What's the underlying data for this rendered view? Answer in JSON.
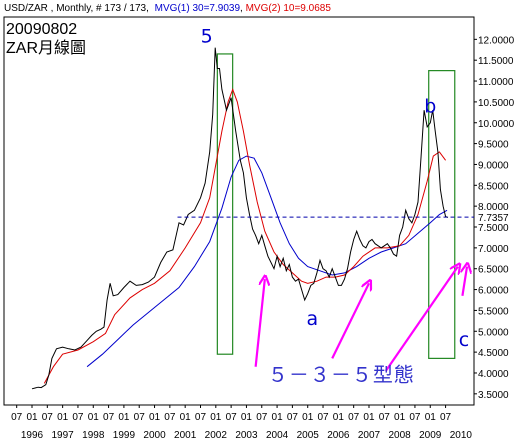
{
  "chart_data": {
    "type": "line",
    "header": {
      "instrument": "USD/ZAR , Monthly, # 173 / 173,",
      "ma1_label": "MVG(1) 30=7.9039",
      "ma2_label": "MVG(2) 10=9.0685"
    },
    "title_lines": [
      "20090802",
      "ZAR月線圖"
    ],
    "y_ticks": [
      "12.0000",
      "11.5000",
      "11.0000",
      "10.5000",
      "10.0000",
      "9.5000",
      "9.0000",
      "8.5000",
      "8.0000",
      "7.5000",
      "7.0000",
      "6.5000",
      "6.0000",
      "5.5000",
      "5.0000",
      "4.5000",
      "4.0000",
      "3.5000"
    ],
    "y_tick_values": [
      12.0,
      11.5,
      11.0,
      10.5,
      10.0,
      9.5,
      9.0,
      8.5,
      8.0,
      7.5,
      7.0,
      6.5,
      6.0,
      5.5,
      5.0,
      4.5,
      4.0,
      3.5
    ],
    "ylim": [
      3.4,
      12.2
    ],
    "xlim": [
      1996.0,
      2010.33
    ],
    "x_month_labels": [
      "07",
      "01",
      "07",
      "01",
      "07",
      "01",
      "07",
      "01",
      "07",
      "01",
      "07",
      "01",
      "07",
      "01",
      "07",
      "01",
      "07",
      "01",
      "07",
      "01",
      "07",
      "01",
      "07",
      "01",
      "07",
      "01",
      "07",
      "01",
      "07"
    ],
    "x_month_positions": [
      1995.5,
      1996.0,
      1996.5,
      1997.0,
      1997.5,
      1998.0,
      1998.5,
      1999.0,
      1999.5,
      2000.0,
      2000.5,
      2001.0,
      2001.5,
      2002.0,
      2002.5,
      2003.0,
      2003.5,
      2004.0,
      2004.5,
      2005.0,
      2005.5,
      2006.0,
      2006.5,
      2007.0,
      2007.5,
      2008.0,
      2008.5,
      2009.0,
      2009.5
    ],
    "x_year_labels": [
      "1996",
      "1997",
      "1998",
      "1999",
      "2000",
      "2001",
      "2002",
      "2003",
      "2004",
      "2005",
      "2006",
      "2007",
      "2008",
      "2009",
      "2010"
    ],
    "x_year_positions": [
      1996.0,
      1997.0,
      1998.0,
      1999.0,
      2000.0,
      2001.0,
      2002.0,
      2003.0,
      2004.0,
      2005.0,
      2006.0,
      2007.0,
      2008.0,
      2009.0,
      2010.0
    ],
    "current_value_label": "7.7357",
    "current_value": 7.7357,
    "series": [
      {
        "color": "#000000",
        "points": [
          [
            1996.0,
            3.62
          ],
          [
            1996.1,
            3.64
          ],
          [
            1996.2,
            3.66
          ],
          [
            1996.3,
            3.65
          ],
          [
            1996.45,
            3.72
          ],
          [
            1996.55,
            3.95
          ],
          [
            1996.65,
            4.35
          ],
          [
            1996.8,
            4.58
          ],
          [
            1997.0,
            4.62
          ],
          [
            1997.2,
            4.58
          ],
          [
            1997.4,
            4.55
          ],
          [
            1997.6,
            4.62
          ],
          [
            1997.8,
            4.78
          ],
          [
            1997.95,
            4.9
          ],
          [
            1998.1,
            5.0
          ],
          [
            1998.25,
            5.05
          ],
          [
            1998.35,
            5.1
          ],
          [
            1998.45,
            5.75
          ],
          [
            1998.55,
            6.15
          ],
          [
            1998.65,
            5.85
          ],
          [
            1998.8,
            5.88
          ],
          [
            1999.0,
            6.05
          ],
          [
            1999.2,
            6.2
          ],
          [
            1999.4,
            6.1
          ],
          [
            1999.6,
            6.12
          ],
          [
            1999.8,
            6.18
          ],
          [
            2000.0,
            6.3
          ],
          [
            2000.2,
            6.65
          ],
          [
            2000.4,
            6.9
          ],
          [
            2000.6,
            6.95
          ],
          [
            2000.8,
            7.6
          ],
          [
            2000.95,
            7.55
          ],
          [
            2001.1,
            7.8
          ],
          [
            2001.3,
            7.9
          ],
          [
            2001.5,
            8.2
          ],
          [
            2001.65,
            8.55
          ],
          [
            2001.8,
            9.3
          ],
          [
            2001.9,
            10.2
          ],
          [
            2001.98,
            11.8
          ],
          [
            2002.05,
            11.3
          ],
          [
            2002.12,
            11.3
          ],
          [
            2002.2,
            10.8
          ],
          [
            2002.35,
            10.3
          ],
          [
            2002.5,
            10.6
          ],
          [
            2002.65,
            9.8
          ],
          [
            2002.8,
            9.1
          ],
          [
            2002.9,
            8.8
          ],
          [
            2003.0,
            8.2
          ],
          [
            2003.1,
            7.8
          ],
          [
            2003.2,
            7.45
          ],
          [
            2003.3,
            7.3
          ],
          [
            2003.4,
            7.1
          ],
          [
            2003.5,
            7.3
          ],
          [
            2003.6,
            7.05
          ],
          [
            2003.7,
            6.8
          ],
          [
            2003.8,
            6.65
          ],
          [
            2003.9,
            6.5
          ],
          [
            2004.0,
            6.8
          ],
          [
            2004.1,
            6.55
          ],
          [
            2004.2,
            6.75
          ],
          [
            2004.3,
            6.45
          ],
          [
            2004.4,
            6.6
          ],
          [
            2004.5,
            6.3
          ],
          [
            2004.6,
            6.2
          ],
          [
            2004.7,
            6.25
          ],
          [
            2004.8,
            6.0
          ],
          [
            2004.9,
            5.75
          ],
          [
            2005.0,
            5.9
          ],
          [
            2005.1,
            6.1
          ],
          [
            2005.2,
            6.15
          ],
          [
            2005.3,
            6.4
          ],
          [
            2005.4,
            6.7
          ],
          [
            2005.5,
            6.5
          ],
          [
            2005.6,
            6.45
          ],
          [
            2005.7,
            6.3
          ],
          [
            2005.8,
            6.5
          ],
          [
            2005.9,
            6.3
          ],
          [
            2006.0,
            6.1
          ],
          [
            2006.1,
            6.1
          ],
          [
            2006.2,
            6.25
          ],
          [
            2006.3,
            6.5
          ],
          [
            2006.4,
            6.9
          ],
          [
            2006.5,
            7.2
          ],
          [
            2006.6,
            7.4
          ],
          [
            2006.7,
            7.2
          ],
          [
            2006.8,
            7.05
          ],
          [
            2006.9,
            7.0
          ],
          [
            2007.0,
            7.15
          ],
          [
            2007.1,
            7.2
          ],
          [
            2007.2,
            7.1
          ],
          [
            2007.3,
            7.05
          ],
          [
            2007.4,
            7.0
          ],
          [
            2007.5,
            7.05
          ],
          [
            2007.6,
            7.1
          ],
          [
            2007.7,
            7.0
          ],
          [
            2007.8,
            6.85
          ],
          [
            2007.9,
            6.8
          ],
          [
            2008.0,
            7.3
          ],
          [
            2008.1,
            7.5
          ],
          [
            2008.2,
            7.9
          ],
          [
            2008.3,
            7.7
          ],
          [
            2008.4,
            7.6
          ],
          [
            2008.5,
            7.8
          ],
          [
            2008.6,
            8.1
          ],
          [
            2008.7,
            9.2
          ],
          [
            2008.8,
            10.3
          ],
          [
            2008.9,
            9.9
          ],
          [
            2009.0,
            10.0
          ],
          [
            2009.08,
            10.3
          ],
          [
            2009.16,
            9.8
          ],
          [
            2009.25,
            9.3
          ],
          [
            2009.33,
            8.4
          ],
          [
            2009.42,
            8.0
          ],
          [
            2009.5,
            7.75
          ],
          [
            2009.58,
            7.73
          ]
        ]
      },
      {
        "color": "#dd0000",
        "points": [
          [
            1996.4,
            3.75
          ],
          [
            1996.7,
            4.15
          ],
          [
            1997.0,
            4.45
          ],
          [
            1997.5,
            4.55
          ],
          [
            1998.0,
            4.75
          ],
          [
            1998.4,
            4.95
          ],
          [
            1998.7,
            5.4
          ],
          [
            1999.2,
            5.8
          ],
          [
            1999.6,
            6.0
          ],
          [
            2000.0,
            6.15
          ],
          [
            2000.5,
            6.45
          ],
          [
            2001.0,
            7.0
          ],
          [
            2001.5,
            7.6
          ],
          [
            2001.8,
            8.2
          ],
          [
            2002.0,
            9.0
          ],
          [
            2002.2,
            9.8
          ],
          [
            2002.4,
            10.5
          ],
          [
            2002.55,
            10.8
          ],
          [
            2002.7,
            10.5
          ],
          [
            2002.9,
            9.8
          ],
          [
            2003.1,
            9.0
          ],
          [
            2003.35,
            8.1
          ],
          [
            2003.6,
            7.4
          ],
          [
            2003.9,
            6.9
          ],
          [
            2004.2,
            6.6
          ],
          [
            2004.5,
            6.4
          ],
          [
            2004.8,
            6.2
          ],
          [
            2005.0,
            6.15
          ],
          [
            2005.3,
            6.2
          ],
          [
            2005.6,
            6.3
          ],
          [
            2005.9,
            6.3
          ],
          [
            2006.2,
            6.35
          ],
          [
            2006.5,
            6.55
          ],
          [
            2006.8,
            6.8
          ],
          [
            2007.2,
            7.0
          ],
          [
            2007.6,
            7.0
          ],
          [
            2008.0,
            7.05
          ],
          [
            2008.3,
            7.3
          ],
          [
            2008.6,
            7.8
          ],
          [
            2008.9,
            8.6
          ],
          [
            2009.1,
            9.2
          ],
          [
            2009.3,
            9.3
          ],
          [
            2009.5,
            9.1
          ]
        ]
      },
      {
        "color": "#0000cc",
        "points": [
          [
            1997.8,
            4.15
          ],
          [
            1998.3,
            4.45
          ],
          [
            1998.8,
            4.8
          ],
          [
            1999.3,
            5.15
          ],
          [
            1999.8,
            5.45
          ],
          [
            2000.3,
            5.75
          ],
          [
            2000.8,
            6.05
          ],
          [
            2001.3,
            6.55
          ],
          [
            2001.8,
            7.15
          ],
          [
            2002.2,
            7.95
          ],
          [
            2002.5,
            8.7
          ],
          [
            2002.75,
            9.1
          ],
          [
            2003.0,
            9.2
          ],
          [
            2003.25,
            9.15
          ],
          [
            2003.5,
            8.8
          ],
          [
            2003.8,
            8.2
          ],
          [
            2004.1,
            7.6
          ],
          [
            2004.4,
            7.1
          ],
          [
            2004.7,
            6.75
          ],
          [
            2005.0,
            6.55
          ],
          [
            2005.4,
            6.45
          ],
          [
            2005.8,
            6.35
          ],
          [
            2006.2,
            6.4
          ],
          [
            2006.6,
            6.55
          ],
          [
            2007.0,
            6.75
          ],
          [
            2007.4,
            6.9
          ],
          [
            2007.8,
            7.0
          ],
          [
            2008.2,
            7.1
          ],
          [
            2008.6,
            7.35
          ],
          [
            2009.0,
            7.6
          ],
          [
            2009.3,
            7.8
          ],
          [
            2009.55,
            7.9
          ]
        ]
      }
    ],
    "annotations": {
      "wave_labels": [
        {
          "text": "5",
          "x": 2001.7,
          "y": 11.92
        },
        {
          "text": "a",
          "x": 2005.15,
          "y": 5.15
        },
        {
          "text": "b",
          "x": 2009.0,
          "y": 10.25
        },
        {
          "text": "c",
          "x": 2010.1,
          "y": 4.65
        }
      ],
      "pattern_text": "５－３－５型態",
      "pattern_position": {
        "x": 2003.7,
        "y": 3.8
      },
      "boxes": [
        {
          "x0": 2002.05,
          "x1": 2002.55,
          "y0": 4.45,
          "y1": 11.65
        },
        {
          "x0": 2008.95,
          "x1": 2009.8,
          "y0": 4.35,
          "y1": 11.25
        }
      ],
      "arrows": [
        {
          "from": [
            2003.3,
            4.15
          ],
          "to": [
            2003.6,
            6.25
          ]
        },
        {
          "from": [
            2005.8,
            4.35
          ],
          "to": [
            2007.0,
            6.15
          ]
        },
        {
          "from": [
            2007.55,
            4.05
          ],
          "to": [
            2009.9,
            6.55
          ]
        },
        {
          "from": [
            2010.05,
            5.85
          ],
          "to": [
            2010.2,
            6.55
          ]
        }
      ]
    },
    "grid": false,
    "legend": "none"
  },
  "colors": {
    "frame": "#000000",
    "box": "#228822",
    "arrow": "#ff00ff",
    "ma1": "#0000cc",
    "ma2": "#dd0000",
    "price": "#000000",
    "current_line": "#0000aa"
  }
}
